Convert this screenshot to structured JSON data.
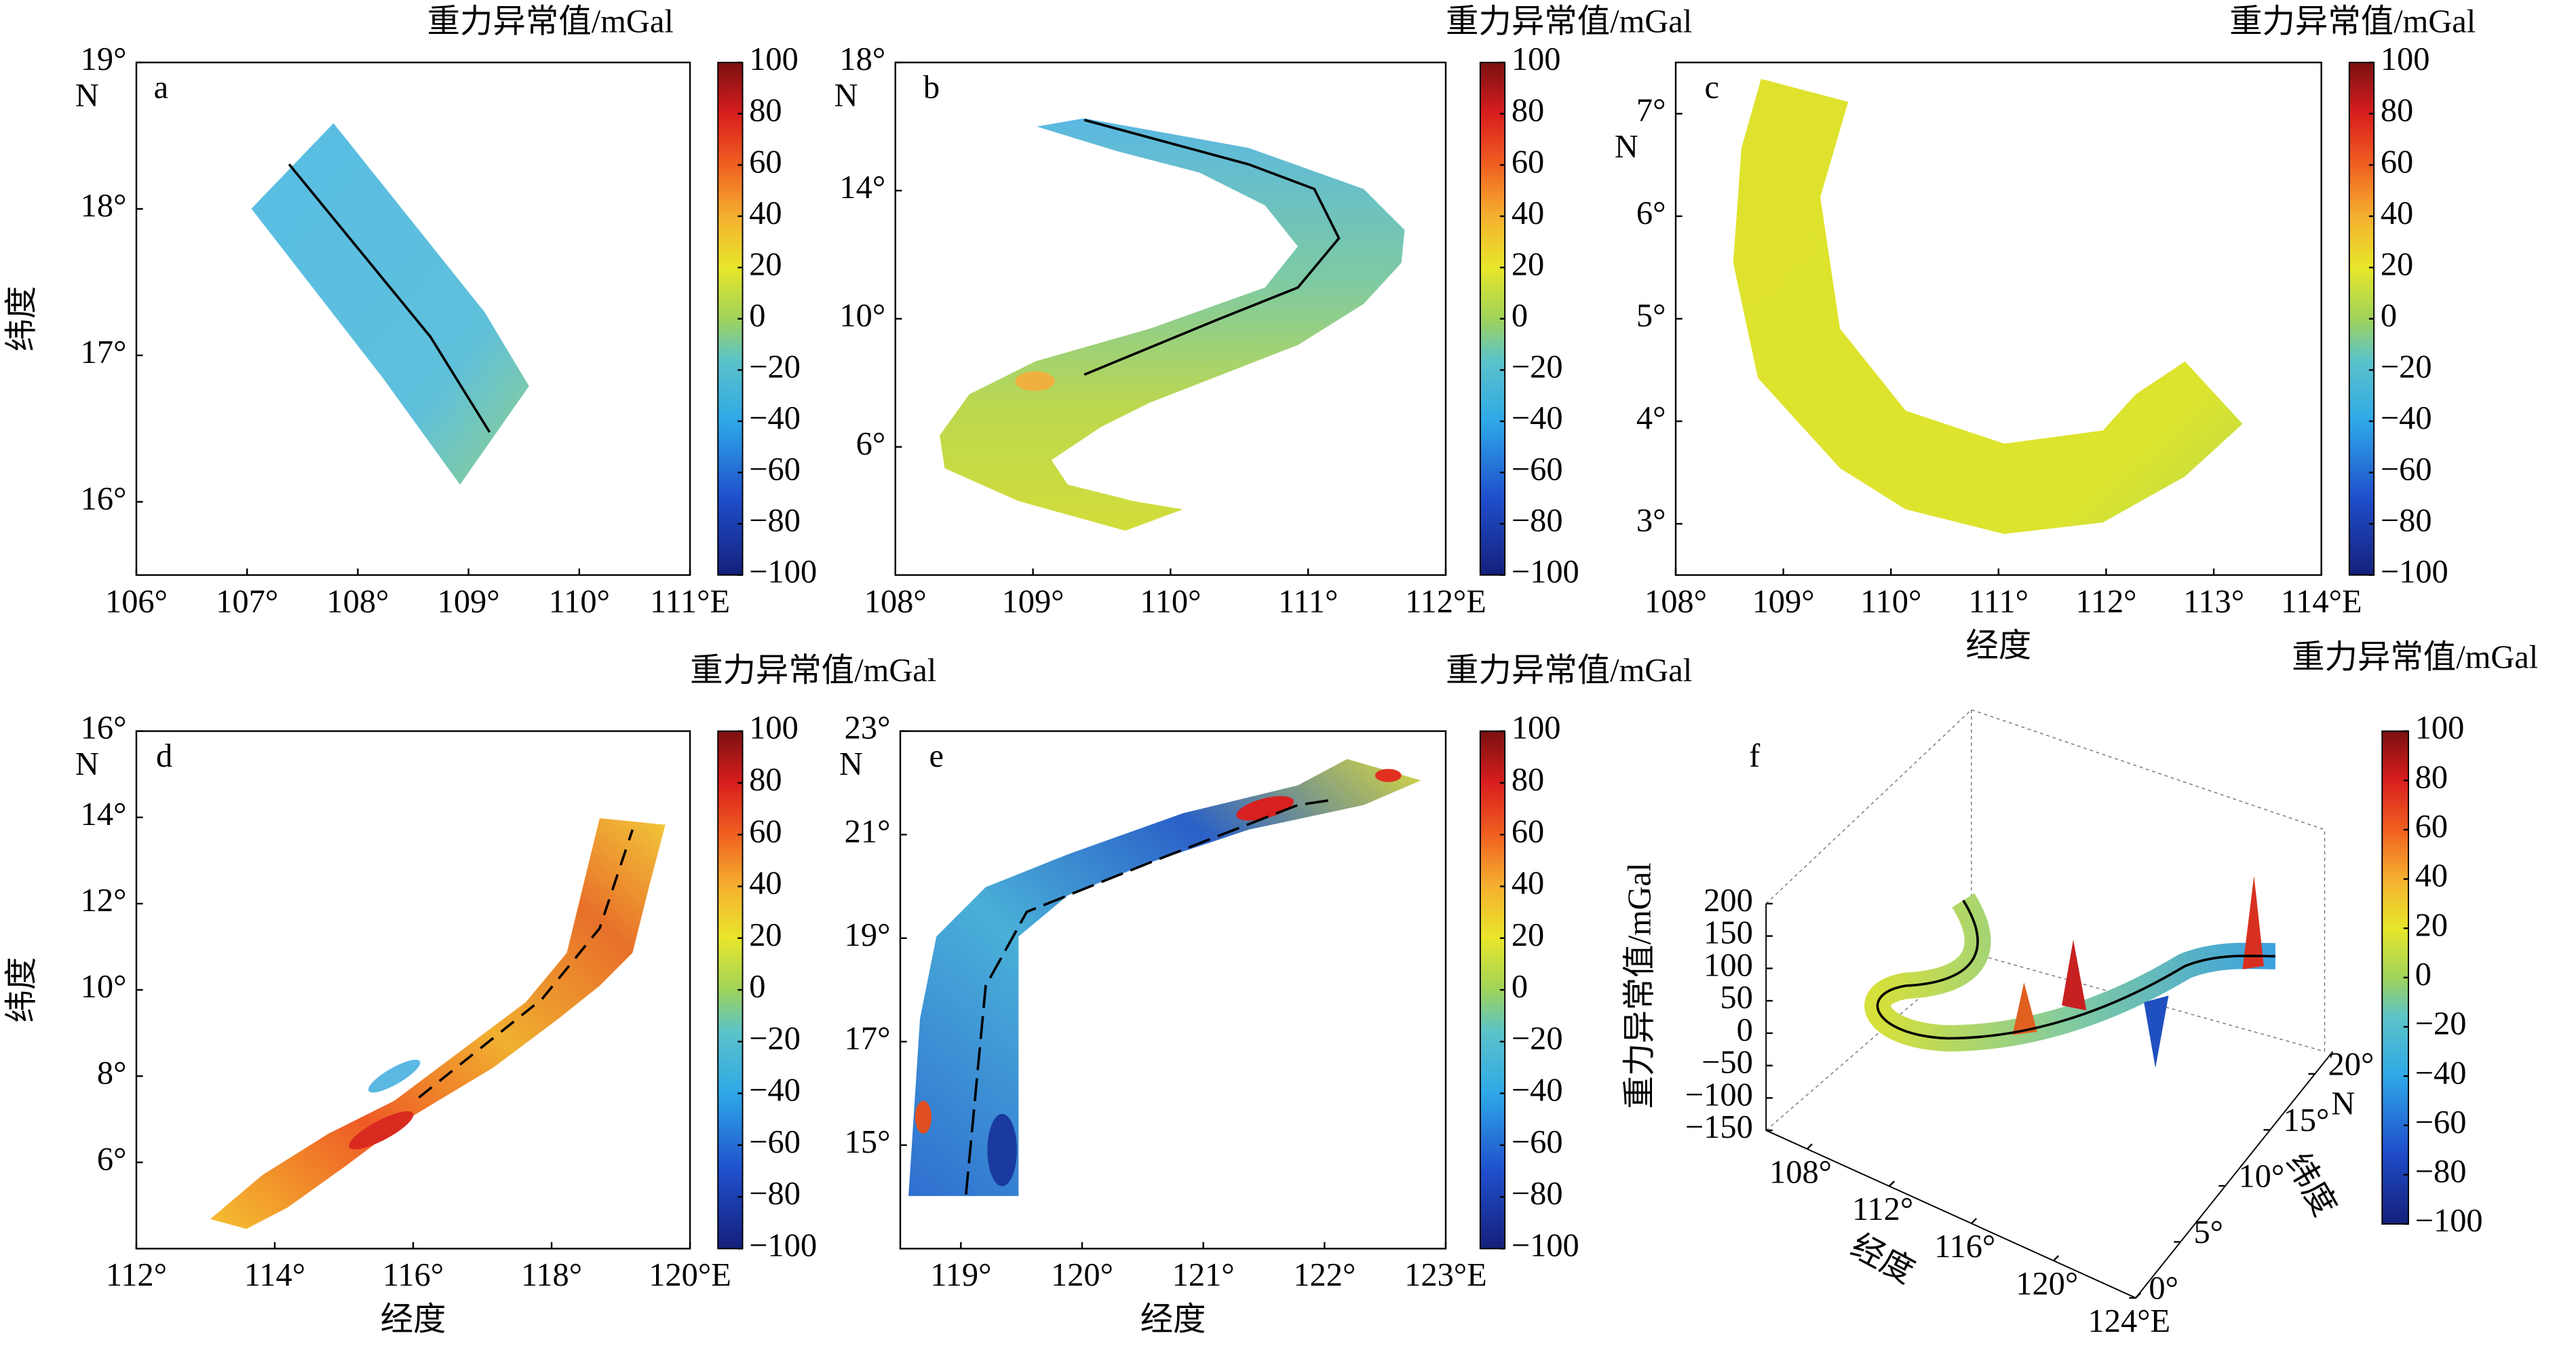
{
  "chart_data": [
    {
      "type": "map",
      "panel_label": "a",
      "colorbar": {
        "title": "重力异常值/mGal",
        "colormap": "jet",
        "clim": [
          -100,
          100
        ],
        "ticks": [
          100,
          80,
          60,
          40,
          20,
          0,
          {
            "value": -20,
            "label": "−20"
          },
          {
            "value": -40,
            "label": "−40"
          },
          {
            "value": -60,
            "label": "−60"
          },
          {
            "value": -80,
            "label": "−80"
          },
          {
            "value": -100,
            "label": "−100"
          }
        ]
      },
      "xlim": [
        106,
        111
      ],
      "xticks": [
        {
          "value": 106,
          "label": "106°"
        },
        {
          "value": 107,
          "label": "107°"
        },
        {
          "value": 108,
          "label": "108°"
        },
        {
          "value": 109,
          "label": "109°"
        },
        {
          "value": 110,
          "label": "110°"
        },
        {
          "value": 111,
          "label": "111°E"
        }
      ],
      "ylim": [
        15.5,
        19
      ],
      "yticks": [
        {
          "value": 16,
          "label": "16°"
        },
        {
          "value": 17,
          "label": "17°"
        },
        {
          "value": 18,
          "label": "18°"
        },
        {
          "value": 19,
          "label": "19°"
        }
      ],
      "y_unit": "N",
      "ylabel": "纬度"
    },
    {
      "type": "map",
      "panel_label": "b",
      "colorbar": {
        "title": "重力异常值/mGal",
        "colormap": "jet",
        "clim": [
          -100,
          100
        ],
        "ticks": [
          100,
          80,
          60,
          40,
          20,
          0,
          {
            "value": -20,
            "label": "−20"
          },
          {
            "value": -40,
            "label": "−40"
          },
          {
            "value": -60,
            "label": "−60"
          },
          {
            "value": -80,
            "label": "−80"
          },
          {
            "value": -100,
            "label": "−100"
          }
        ]
      },
      "xlim": [
        108,
        112
      ],
      "xticks": [
        {
          "value": 108,
          "label": "108°"
        },
        {
          "value": 109,
          "label": "109°"
        },
        {
          "value": 110,
          "label": "110°"
        },
        {
          "value": 111,
          "label": "111°"
        },
        {
          "value": 112,
          "label": "112°E"
        }
      ],
      "ylim": [
        2,
        18
      ],
      "yticks": [
        {
          "value": 6,
          "label": "6°"
        },
        {
          "value": 10,
          "label": "10°"
        },
        {
          "value": 14,
          "label": "14°"
        },
        {
          "value": 18,
          "label": "18°"
        }
      ],
      "y_unit": "N"
    },
    {
      "type": "map",
      "panel_label": "c",
      "colorbar": {
        "title": "重力异常值/mGal",
        "colormap": "jet",
        "clim": [
          -100,
          100
        ],
        "ticks": [
          100,
          80,
          60,
          40,
          20,
          0,
          {
            "value": -20,
            "label": "−20"
          },
          {
            "value": -40,
            "label": "−40"
          },
          {
            "value": -60,
            "label": "−60"
          },
          {
            "value": -80,
            "label": "−80"
          },
          {
            "value": -100,
            "label": "−100"
          }
        ]
      },
      "xlim": [
        108,
        114
      ],
      "xticks": [
        {
          "value": 108,
          "label": "108°"
        },
        {
          "value": 109,
          "label": "109°"
        },
        {
          "value": 110,
          "label": "110°"
        },
        {
          "value": 111,
          "label": "111°"
        },
        {
          "value": 112,
          "label": "112°"
        },
        {
          "value": 113,
          "label": "113°"
        },
        {
          "value": 114,
          "label": "114°E"
        }
      ],
      "ylim": [
        2.5,
        7.5
      ],
      "yticks": [
        {
          "value": 3,
          "label": "3°"
        },
        {
          "value": 4,
          "label": "4°"
        },
        {
          "value": 5,
          "label": "5°"
        },
        {
          "value": 6,
          "label": "6°"
        },
        {
          "value": 7,
          "label": "7°"
        }
      ],
      "y_unit": "N",
      "xlabel": "经度"
    },
    {
      "type": "map",
      "panel_label": "d",
      "colorbar": {
        "title": "重力异常值/mGal",
        "colormap": "jet",
        "clim": [
          -100,
          100
        ],
        "ticks": [
          100,
          80,
          60,
          40,
          20,
          0,
          {
            "value": -20,
            "label": "−20"
          },
          {
            "value": -40,
            "label": "−40"
          },
          {
            "value": -60,
            "label": "−60"
          },
          {
            "value": -80,
            "label": "−80"
          },
          {
            "value": -100,
            "label": "−100"
          }
        ]
      },
      "xlim": [
        112,
        120
      ],
      "xticks": [
        {
          "value": 112,
          "label": "112°"
        },
        {
          "value": 114,
          "label": "114°"
        },
        {
          "value": 116,
          "label": "116°"
        },
        {
          "value": 118,
          "label": "118°"
        },
        {
          "value": 120,
          "label": "120°E"
        }
      ],
      "ylim": [
        4,
        16
      ],
      "yticks": [
        {
          "value": 6,
          "label": "6°"
        },
        {
          "value": 8,
          "label": "8°"
        },
        {
          "value": 10,
          "label": "10°"
        },
        {
          "value": 12,
          "label": "12°"
        },
        {
          "value": 14,
          "label": "14°"
        },
        {
          "value": 16,
          "label": "16°"
        }
      ],
      "y_unit": "N",
      "xlabel": "经度",
      "ylabel": "纬度"
    },
    {
      "type": "map",
      "panel_label": "e",
      "colorbar": {
        "title": "重力异常值/mGal",
        "colormap": "jet",
        "clim": [
          -100,
          100
        ],
        "ticks": [
          100,
          80,
          60,
          40,
          20,
          0,
          {
            "value": -20,
            "label": "−20"
          },
          {
            "value": -40,
            "label": "−40"
          },
          {
            "value": -60,
            "label": "−60"
          },
          {
            "value": -80,
            "label": "−80"
          },
          {
            "value": -100,
            "label": "−100"
          }
        ]
      },
      "xlim": [
        118.5,
        123
      ],
      "xticks": [
        {
          "value": 119,
          "label": "119°"
        },
        {
          "value": 120,
          "label": "120°"
        },
        {
          "value": 121,
          "label": "121°"
        },
        {
          "value": 122,
          "label": "122°"
        },
        {
          "value": 123,
          "label": "123°E"
        }
      ],
      "ylim": [
        13,
        23
      ],
      "yticks": [
        {
          "value": 15,
          "label": "15°"
        },
        {
          "value": 17,
          "label": "17°"
        },
        {
          "value": 19,
          "label": "19°"
        },
        {
          "value": 21,
          "label": "21°"
        },
        {
          "value": 23,
          "label": "23°"
        }
      ],
      "y_unit": "N",
      "xlabel": "经度"
    },
    {
      "type": "surface3d",
      "panel_label": "f",
      "colorbar": {
        "title": "重力异常值/mGal",
        "colormap": "jet",
        "clim": [
          -100,
          100
        ],
        "ticks": [
          100,
          80,
          60,
          40,
          20,
          0,
          {
            "value": -20,
            "label": "−20"
          },
          {
            "value": -40,
            "label": "−40"
          },
          {
            "value": -60,
            "label": "−60"
          },
          {
            "value": -80,
            "label": "−80"
          },
          {
            "value": -100,
            "label": "−100"
          }
        ]
      },
      "xlim": [
        106,
        124
      ],
      "xticks": [
        {
          "value": 108,
          "label": "108°"
        },
        {
          "value": 112,
          "label": "112°"
        },
        {
          "value": 116,
          "label": "116°"
        },
        {
          "value": 120,
          "label": "120°"
        },
        {
          "value": 124,
          "label": "124°E"
        }
      ],
      "ylim": [
        0,
        22
      ],
      "yticks": [
        {
          "value": 0,
          "label": "0°"
        },
        {
          "value": 5,
          "label": "5°"
        },
        {
          "value": 10,
          "label": "10°"
        },
        {
          "value": 15,
          "label": "15°"
        },
        {
          "value": 20,
          "label": "20°"
        }
      ],
      "y_unit": "N",
      "zlim": [
        -150,
        200
      ],
      "zticks": [
        200,
        150,
        100,
        50,
        0,
        {
          "value": -50,
          "label": "−50"
        },
        {
          "value": -100,
          "label": "−100"
        },
        {
          "value": -150,
          "label": "−150"
        }
      ],
      "xlabel": "经度",
      "ylabel": "纬度",
      "zlabel": "重力异常值/mGal"
    }
  ]
}
